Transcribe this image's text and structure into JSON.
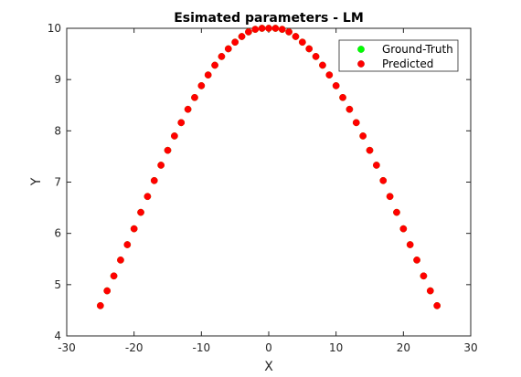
{
  "chart_data": {
    "type": "scatter",
    "title": "Esimated parameters - LM",
    "xlabel": "X",
    "ylabel": "Y",
    "xlim": [
      -30,
      30
    ],
    "ylim": [
      4,
      10
    ],
    "xticks": [
      -30,
      -20,
      -10,
      0,
      10,
      20,
      30
    ],
    "yticks": [
      4,
      5,
      6,
      7,
      8,
      9,
      10
    ],
    "grid": false,
    "legend_position": "top-right",
    "x": [
      -25,
      -24,
      -23,
      -22,
      -21,
      -20,
      -19,
      -18,
      -17,
      -16,
      -15,
      -14,
      -13,
      -12,
      -11,
      -10,
      -9,
      -8,
      -7,
      -6,
      -5,
      -4,
      -3,
      -2,
      -1,
      0,
      1,
      2,
      3,
      4,
      5,
      6,
      7,
      8,
      9,
      10,
      11,
      12,
      13,
      14,
      15,
      16,
      17,
      18,
      19,
      20,
      21,
      22,
      23,
      24,
      25
    ],
    "series": [
      {
        "name": "Ground-Truth",
        "color": "#00ff00",
        "y": [
          4.59,
          4.88,
          5.17,
          5.48,
          5.78,
          6.09,
          6.41,
          6.72,
          7.03,
          7.33,
          7.62,
          7.9,
          8.16,
          8.42,
          8.65,
          8.88,
          9.09,
          9.28,
          9.45,
          9.6,
          9.73,
          9.84,
          9.93,
          9.98,
          10.0,
          10.0,
          10.0,
          9.98,
          9.93,
          9.84,
          9.73,
          9.6,
          9.45,
          9.28,
          9.09,
          8.88,
          8.65,
          8.42,
          8.16,
          7.9,
          7.62,
          7.33,
          7.03,
          6.72,
          6.41,
          6.09,
          5.78,
          5.48,
          5.17,
          4.88,
          4.59
        ]
      },
      {
        "name": "Predicted",
        "color": "#ff0000",
        "y": [
          4.59,
          4.88,
          5.17,
          5.48,
          5.78,
          6.09,
          6.41,
          6.72,
          7.03,
          7.33,
          7.62,
          7.9,
          8.16,
          8.42,
          8.65,
          8.88,
          9.09,
          9.28,
          9.45,
          9.6,
          9.73,
          9.84,
          9.93,
          9.98,
          10.0,
          10.0,
          10.0,
          9.98,
          9.93,
          9.84,
          9.73,
          9.6,
          9.45,
          9.28,
          9.09,
          8.88,
          8.65,
          8.42,
          8.16,
          7.9,
          7.62,
          7.33,
          7.03,
          6.72,
          6.41,
          6.09,
          5.78,
          5.48,
          5.17,
          4.88,
          4.59
        ]
      }
    ]
  }
}
